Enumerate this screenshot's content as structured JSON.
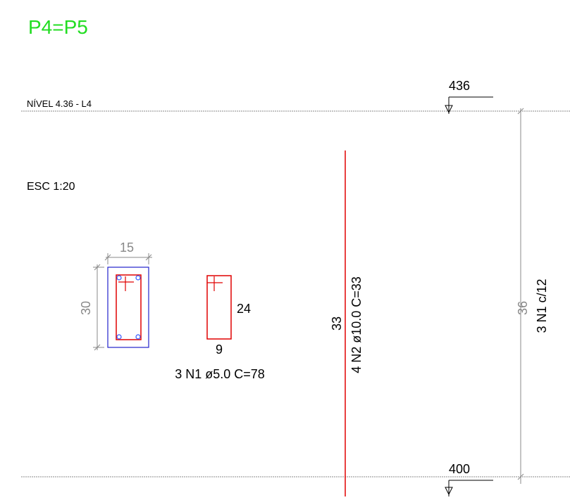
{
  "title": "P4=P5",
  "scale": "ESC 1:20",
  "level_top": {
    "label": "NÍVEL 4.36 - L4",
    "elevation": "436"
  },
  "level_bottom": {
    "elevation": "400"
  },
  "section": {
    "width_dim": "15",
    "height_dim": "30"
  },
  "stirrup": {
    "height_dim": "24",
    "width_dim": "9",
    "callout": "3 N1 ø5.0  C=78"
  },
  "long_bar": {
    "length_dim": "33",
    "callout": "4 N2 ø10.0  C=33"
  },
  "column_dim": {
    "height": "36",
    "callout": "3 N1 c/12"
  },
  "colors": {
    "title": "#22dd22",
    "rebar": "#e00000",
    "section_outline": "#2222cc",
    "dimension": "#888888",
    "bar_tie": "#3355ff"
  }
}
